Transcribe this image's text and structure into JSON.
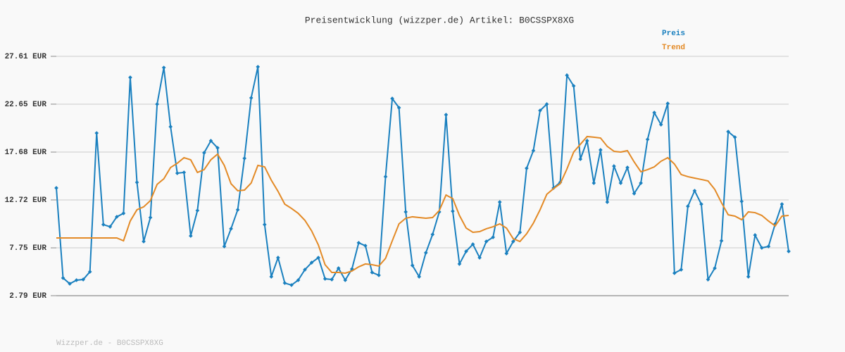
{
  "chart_data": {
    "type": "line",
    "title": "Preisentwicklung (wizzper.de) Artikel: B0CSSPX8XG",
    "footer": "Wizzper.de - B0CSSPX8XG",
    "ylim": [
      2.79,
      27.61
    ],
    "yticks": [
      {
        "value": 2.79,
        "label": "2.79 EUR"
      },
      {
        "value": 7.75,
        "label": "7.75 EUR"
      },
      {
        "value": 12.72,
        "label": "12.72 EUR"
      },
      {
        "value": 17.68,
        "label": "17.68 EUR"
      },
      {
        "value": 22.65,
        "label": "22.65 EUR"
      },
      {
        "value": 27.61,
        "label": "27.61 EUR"
      }
    ],
    "grid": true,
    "legend": "top-right",
    "series": [
      {
        "name": "Preis",
        "color": "#1a80bf",
        "markers": true,
        "values": [
          13.96,
          4.62,
          4.03,
          4.4,
          4.47,
          5.27,
          19.65,
          10.16,
          9.94,
          10.97,
          11.33,
          25.42,
          14.54,
          8.41,
          10.89,
          22.65,
          26.44,
          20.31,
          15.49,
          15.57,
          8.99,
          11.62,
          17.61,
          18.85,
          18.12,
          7.9,
          9.73,
          11.7,
          17.03,
          23.3,
          26.52,
          10.16,
          4.76,
          6.73,
          4.1,
          3.89,
          4.4,
          5.49,
          6.22,
          6.73,
          4.54,
          4.47,
          5.64,
          4.4,
          5.56,
          8.27,
          7.97,
          5.2,
          4.91,
          15.13,
          23.23,
          22.28,
          11.48,
          5.93,
          4.76,
          7.24,
          9.14,
          11.48,
          21.55,
          11.55,
          6.08,
          7.39,
          8.12,
          6.73,
          8.41,
          8.85,
          12.5,
          7.17,
          8.41,
          9.36,
          16.0,
          17.83,
          21.99,
          22.65,
          13.96,
          14.54,
          25.64,
          24.54,
          16.95,
          18.85,
          14.47,
          17.9,
          12.5,
          16.22,
          14.47,
          16.08,
          13.38,
          14.47,
          19.0,
          21.77,
          20.53,
          22.72,
          5.13,
          5.49,
          12.06,
          13.67,
          12.28,
          4.47,
          5.64,
          8.48,
          19.8,
          19.22,
          12.57,
          4.76,
          9.07,
          7.75,
          7.9,
          10.24,
          12.28,
          7.39
        ]
      },
      {
        "name": "Trend",
        "color": "#e38a26",
        "markers": false,
        "values": [
          8.78,
          8.78,
          8.78,
          8.78,
          8.78,
          8.78,
          8.78,
          8.78,
          8.78,
          8.78,
          8.48,
          10.53,
          11.7,
          12.0,
          12.65,
          14.33,
          14.91,
          16.08,
          16.52,
          17.1,
          16.88,
          15.57,
          15.86,
          16.88,
          17.47,
          16.3,
          14.4,
          13.67,
          13.74,
          14.47,
          16.3,
          16.15,
          14.76,
          13.6,
          12.28,
          11.84,
          11.33,
          10.6,
          9.51,
          8.05,
          6.0,
          5.2,
          5.2,
          5.13,
          5.35,
          5.78,
          6.08,
          6.0,
          5.86,
          6.66,
          8.48,
          10.24,
          10.82,
          10.97,
          10.89,
          10.82,
          10.89,
          11.62,
          13.23,
          12.86,
          11.11,
          9.8,
          9.36,
          9.43,
          9.73,
          9.94,
          10.24,
          9.8,
          8.7,
          8.41,
          9.21,
          10.31,
          11.7,
          13.3,
          13.89,
          14.4,
          15.93,
          17.68,
          18.49,
          19.29,
          19.22,
          19.14,
          18.27,
          17.76,
          17.68,
          17.83,
          16.66,
          15.64,
          15.86,
          16.15,
          16.73,
          17.1,
          16.44,
          15.35,
          15.13,
          14.98,
          14.84,
          14.69,
          13.81,
          12.43,
          11.18,
          11.04,
          10.67,
          11.48,
          11.4,
          11.11,
          10.53,
          10.02,
          11.04,
          11.11
        ]
      }
    ]
  }
}
